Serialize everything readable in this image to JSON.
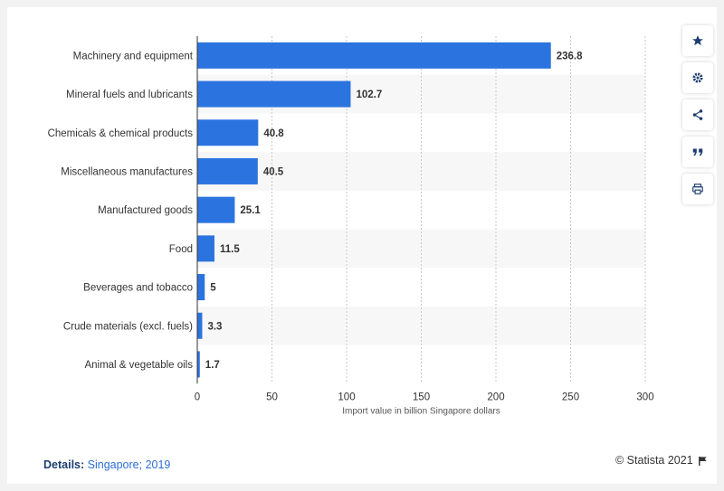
{
  "chart_data": {
    "type": "bar",
    "orientation": "horizontal",
    "categories": [
      "Machinery and equipment",
      "Mineral fuels and lubricants",
      "Chemicals & chemical products",
      "Miscellaneous manufactures",
      "Manufactured goods",
      "Food",
      "Beverages and tobacco",
      "Crude materials (excl. fuels)",
      "Animal & vegetable oils"
    ],
    "values": [
      236.8,
      102.7,
      40.8,
      40.5,
      25.1,
      11.5,
      5,
      3.3,
      1.7
    ],
    "value_labels": [
      "236.8",
      "102.7",
      "40.8",
      "40.5",
      "25.1",
      "11.5",
      "5",
      "3.3",
      "1.7"
    ],
    "xlabel": "Import value in billion Singapore dollars",
    "xlim": [
      0,
      300
    ],
    "xticks": [
      "0",
      "50",
      "100",
      "150",
      "200",
      "250",
      "300"
    ],
    "grid": true,
    "bar_color": "#2b74e0"
  },
  "footer": {
    "details_label": "Details:",
    "details_text": " Singapore; 2019",
    "copyright": "© Statista 2021"
  },
  "toolbar": {
    "items": [
      "star-icon",
      "gear-icon",
      "share-icon",
      "quote-icon",
      "print-icon"
    ]
  }
}
